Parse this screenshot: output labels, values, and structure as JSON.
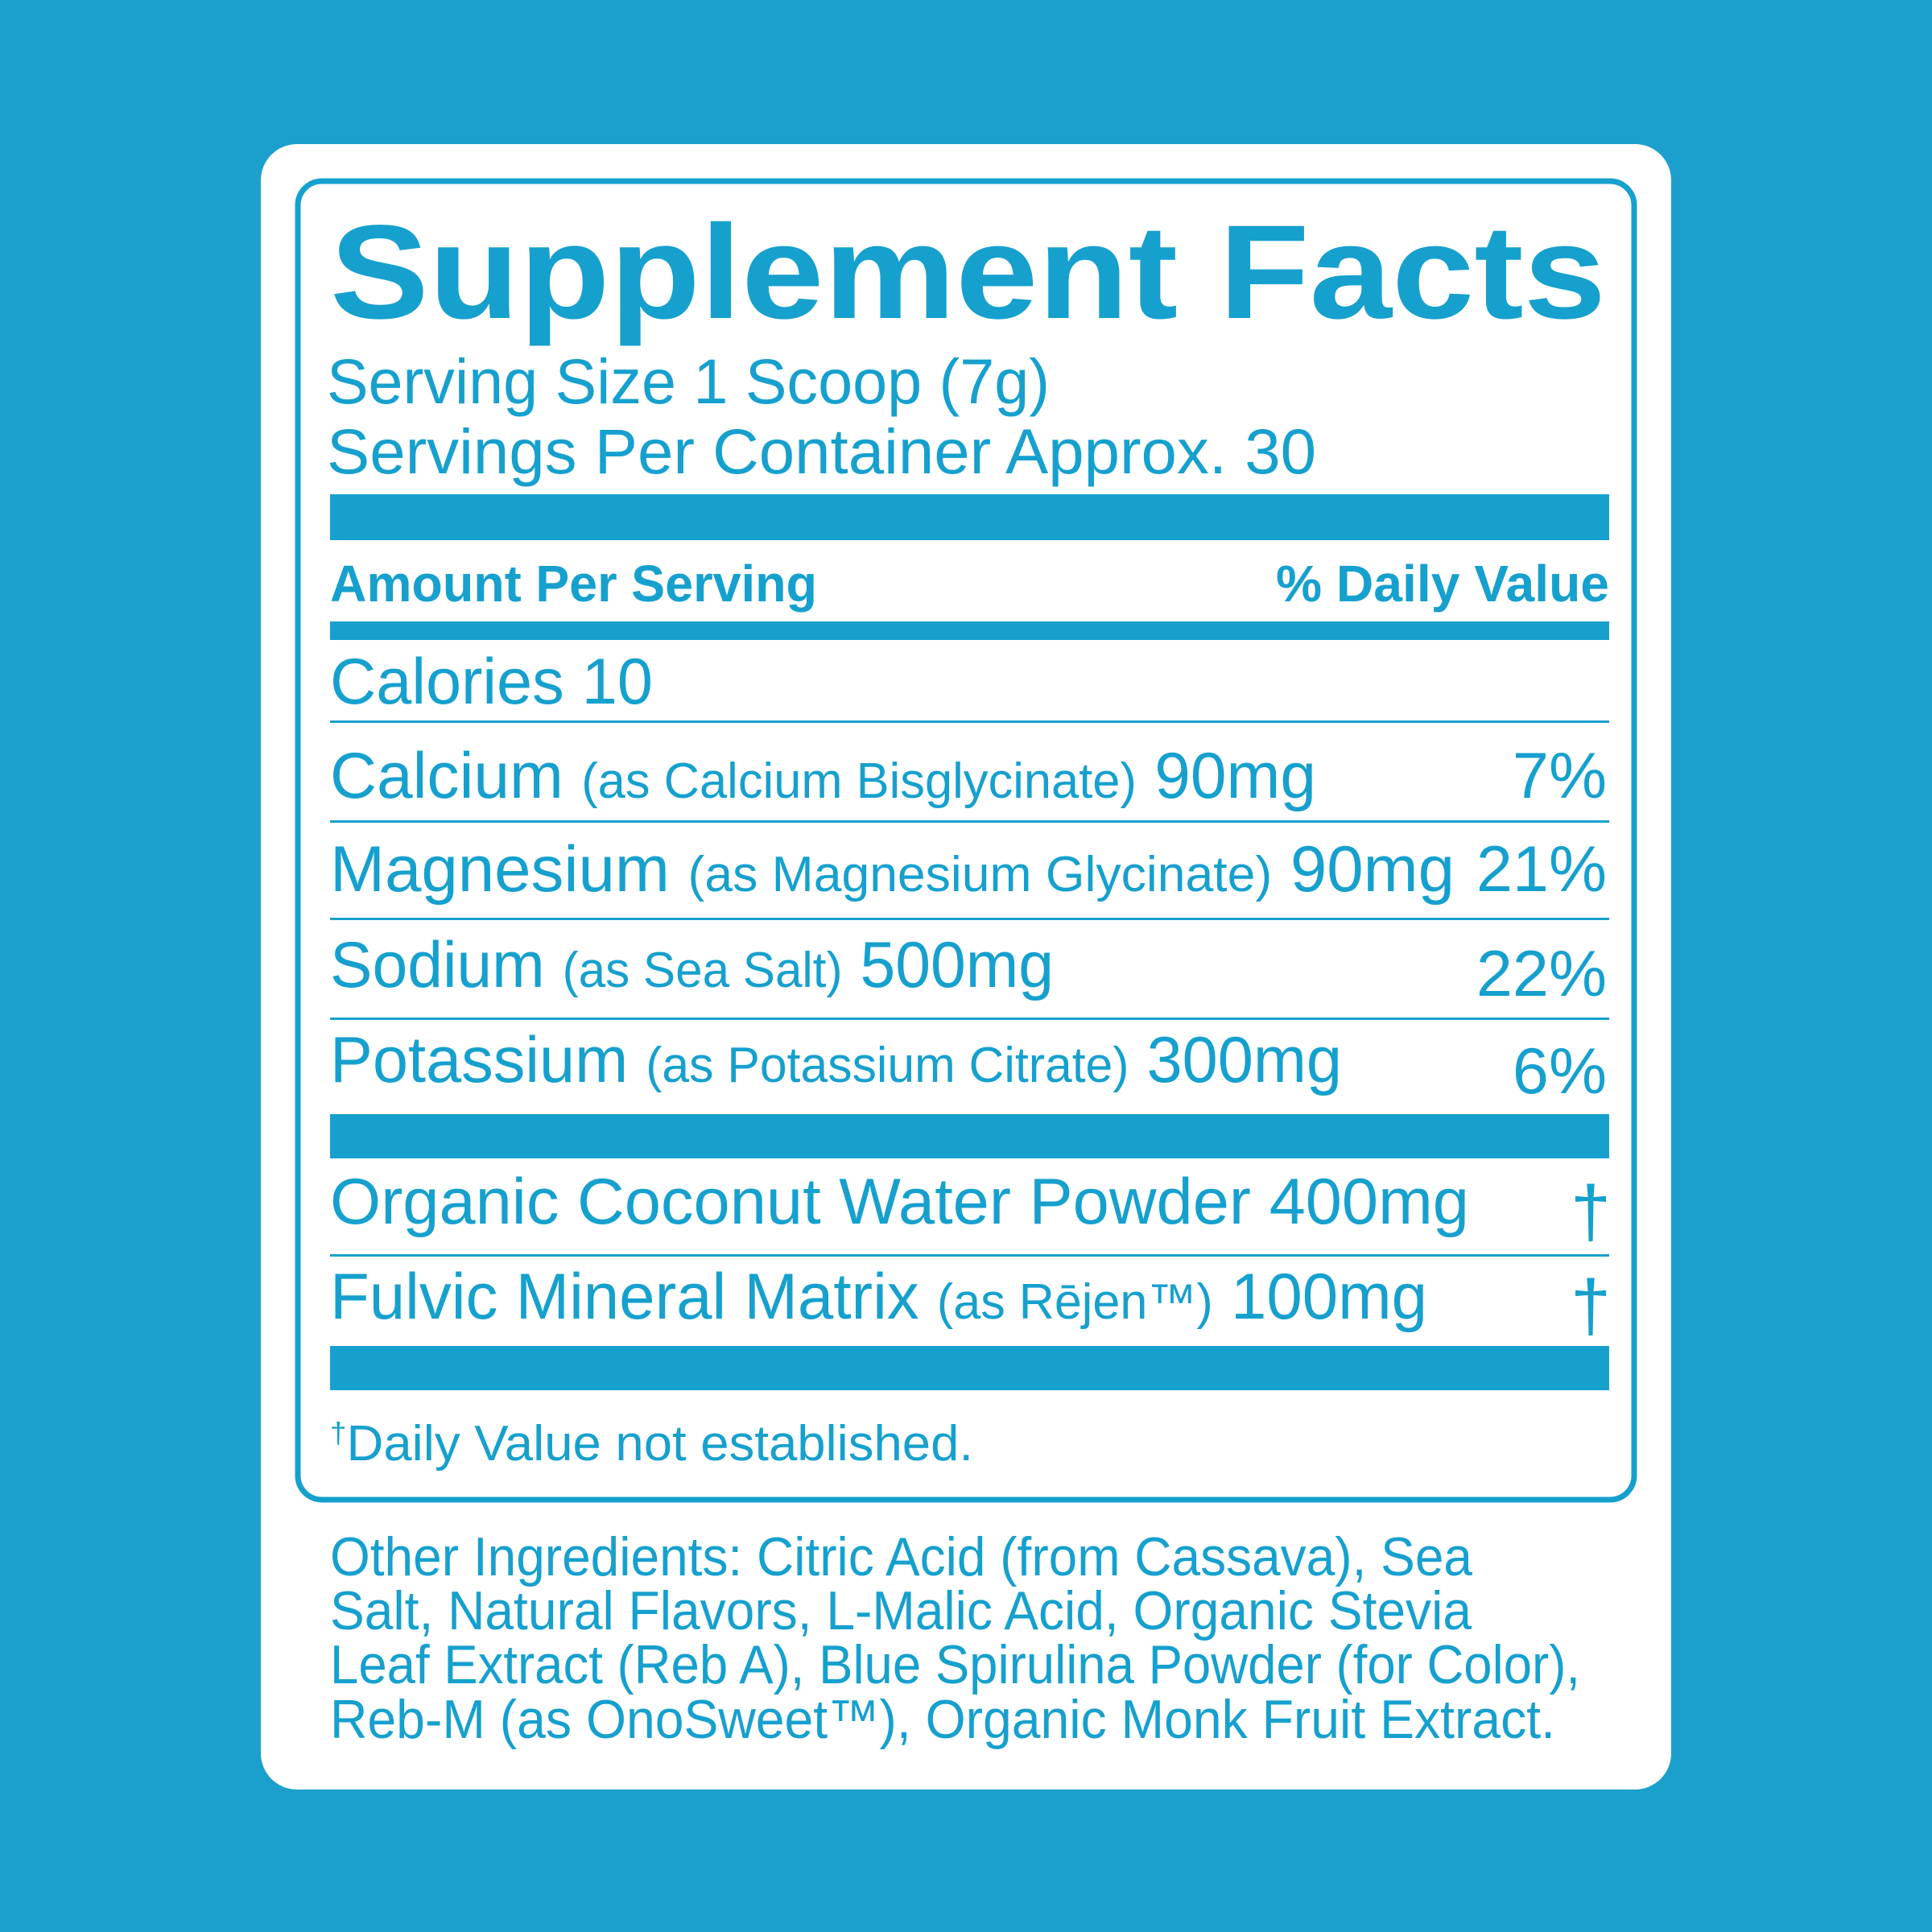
{
  "colors": {
    "background": "#1ba0cd",
    "card": "#ffffff",
    "accent": "#16a0ce"
  },
  "label": {
    "title": "Supplement Facts",
    "serving_size": "Serving Size 1 Scoop (7g)",
    "servings_per_container": "Servings Per Container Approx. 30",
    "header": {
      "amount": "Amount Per Serving",
      "daily_value": "% Daily Value"
    },
    "calories": {
      "label": "Calories",
      "value": "10"
    },
    "nutrients": [
      {
        "name": "Calcium",
        "source": "(as Calcium Bisglycinate)",
        "amount": "90mg",
        "dv": "7%"
      },
      {
        "name": "Magnesium",
        "source": "(as Magnesium Glycinate)",
        "amount": "90mg",
        "dv": "21%"
      },
      {
        "name": "Sodium",
        "source": "(as Sea Salt)",
        "amount": "500mg",
        "dv": "22%"
      },
      {
        "name": "Potassium",
        "source": "(as Potassium Citrate)",
        "amount": "300mg",
        "dv": "6%"
      }
    ],
    "other_nutrients": [
      {
        "name": "Organic Coconut Water Powder",
        "source": "",
        "amount": "400mg",
        "dv": "†"
      },
      {
        "name": "Fulvic Mineral Matrix",
        "source": "(as Rējen™)",
        "amount": "100mg",
        "dv": "†"
      }
    ],
    "footnote": {
      "mark": "†",
      "text": "Daily Value not established."
    }
  },
  "other_ingredients": [
    "Other Ingredients: Citric Acid (from Cassava), Sea",
    "Salt, Natural Flavors, L-Malic Acid, Organic Stevia",
    "Leaf Extract (Reb A), Blue Spirulina Powder (for Color),",
    "Reb-M (as OnoSweet™), Organic Monk Fruit Extract."
  ]
}
